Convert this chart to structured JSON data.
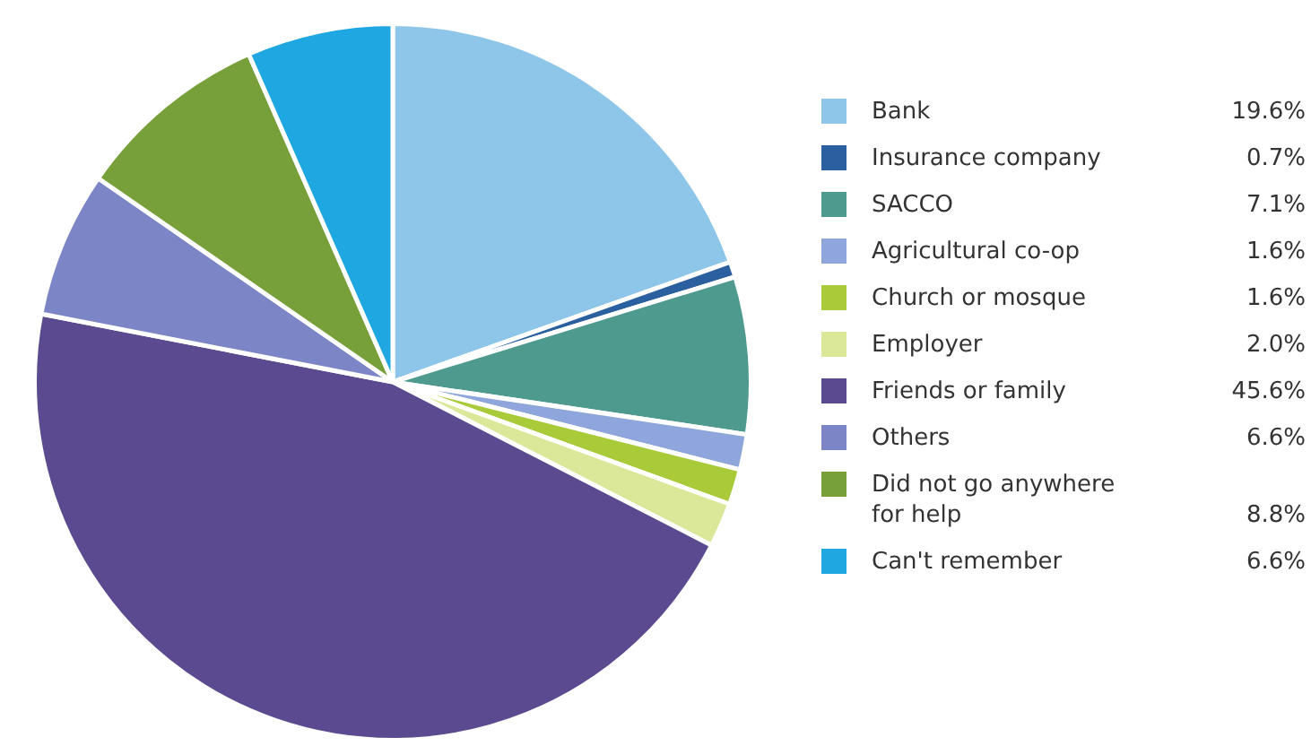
{
  "chart_data": {
    "type": "pie",
    "categories": [
      "Bank",
      "Insurance company",
      "SACCO",
      "Agricultural co-op",
      "Church or mosque",
      "Employer",
      "Friends or family",
      "Others",
      "Did not go anywhere for help",
      "Can't remember"
    ],
    "values": [
      19.6,
      0.7,
      7.1,
      1.6,
      1.6,
      2.0,
      45.6,
      6.6,
      8.8,
      6.6
    ],
    "colors": [
      "#8ec6ea",
      "#2a5fa0",
      "#4e9a8e",
      "#8fa6dc",
      "#a9cb3a",
      "#dbe89a",
      "#5b4a8f",
      "#7c86c6",
      "#77a03a",
      "#1ea7e0"
    ],
    "value_labels": [
      "19.6%",
      "0.7%",
      "7.1%",
      "1.6%",
      "1.6%",
      "2.0%",
      "45.6%",
      "6.6%",
      "8.8%",
      "6.6%"
    ],
    "legend": "right"
  }
}
